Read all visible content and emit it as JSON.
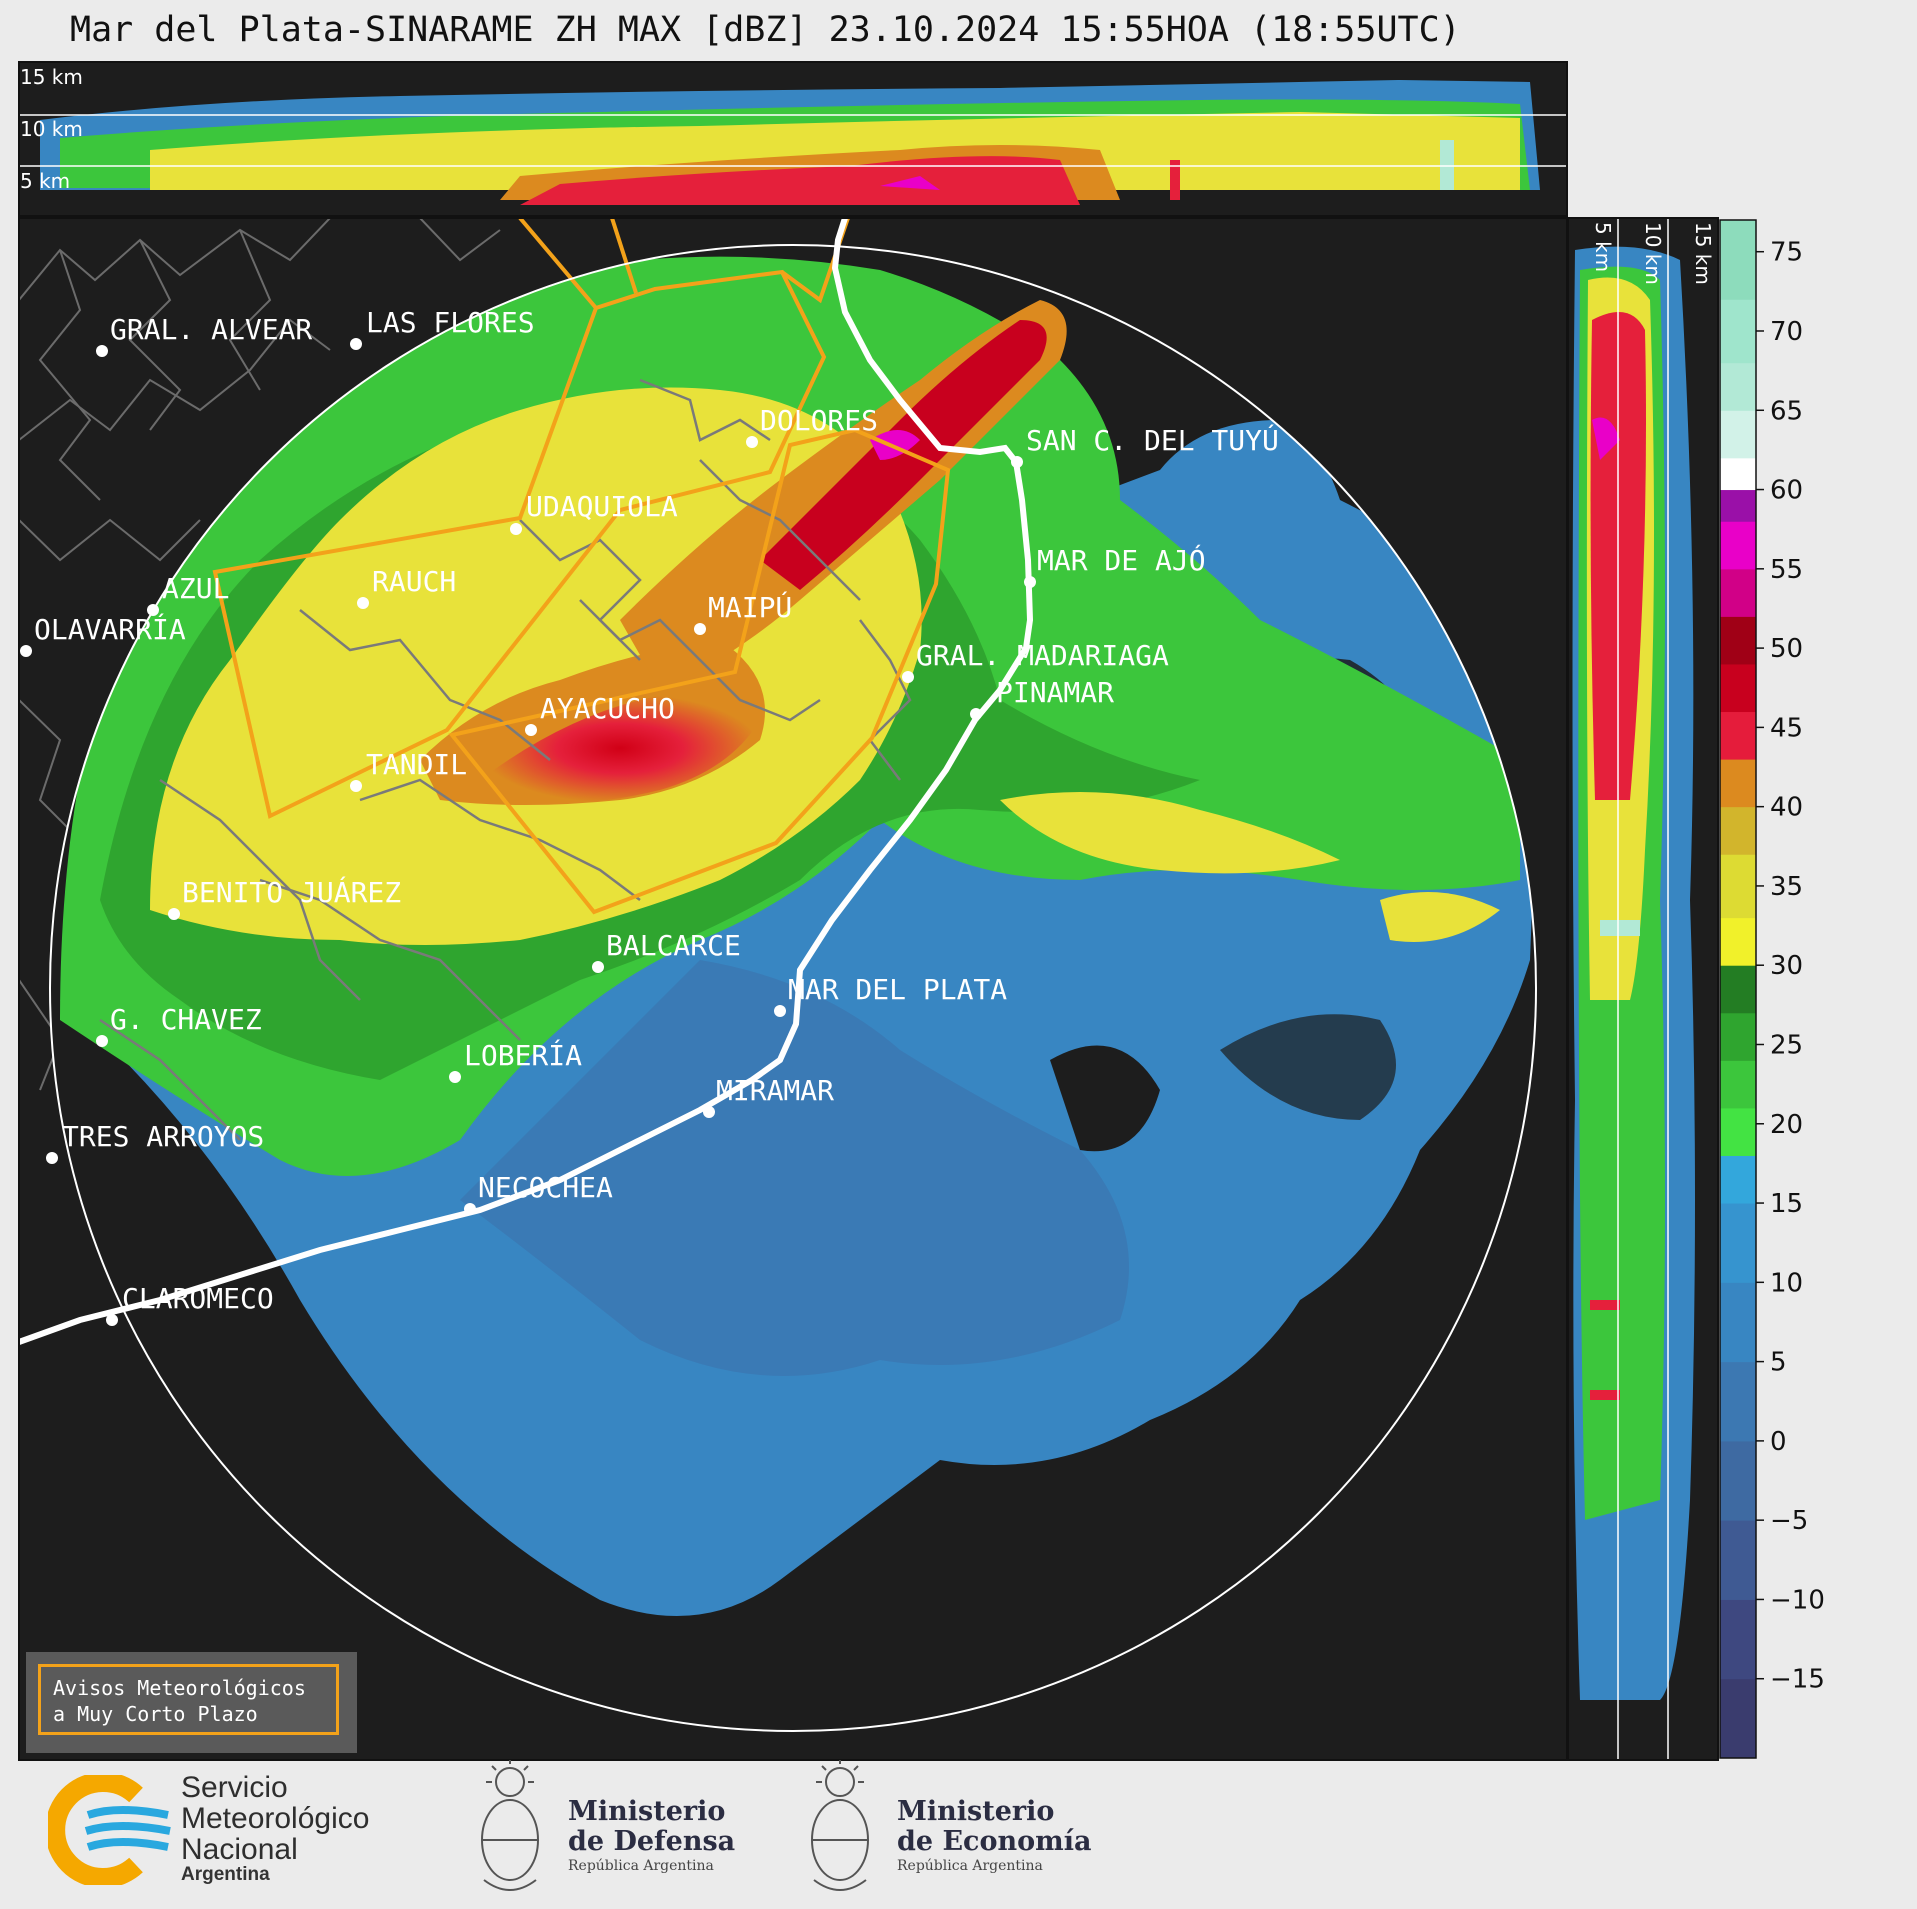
{
  "title": "Mar del Plata-SINARAME ZH MAX [dBZ] 23.10.2024 15:55HOA (18:55UTC)",
  "height_labels": {
    "top": [
      "15 km",
      "10 km",
      "5 km"
    ],
    "side": [
      "5 km",
      "10 km",
      "15 km"
    ]
  },
  "colorbar": {
    "ticks": [
      "75",
      "70",
      "65",
      "60",
      "55",
      "50",
      "45",
      "40",
      "35",
      "30",
      "25",
      "20",
      "15",
      "10",
      "5",
      "0",
      "−5",
      "−10",
      "−15"
    ],
    "tick_values": [
      75,
      70,
      65,
      60,
      55,
      50,
      45,
      40,
      35,
      30,
      25,
      20,
      15,
      10,
      5,
      0,
      -5,
      -10,
      -15
    ],
    "range": [
      -20,
      77
    ],
    "bands": [
      {
        "from": -20,
        "to": -15,
        "color": "#3a3c6e"
      },
      {
        "from": -15,
        "to": -10,
        "color": "#3e4880"
      },
      {
        "from": -10,
        "to": -5,
        "color": "#3f5a93"
      },
      {
        "from": -5,
        "to": 0,
        "color": "#3e6aa2"
      },
      {
        "from": 0,
        "to": 5,
        "color": "#3c78b2"
      },
      {
        "from": 5,
        "to": 10,
        "color": "#3886c2"
      },
      {
        "from": 10,
        "to": 15,
        "color": "#3694cf"
      },
      {
        "from": 15,
        "to": 18,
        "color": "#33a7dc"
      },
      {
        "from": 18,
        "to": 21,
        "color": "#43e343"
      },
      {
        "from": 21,
        "to": 24,
        "color": "#3cc63c"
      },
      {
        "from": 24,
        "to": 27,
        "color": "#2fa52f"
      },
      {
        "from": 27,
        "to": 30,
        "color": "#237d23"
      },
      {
        "from": 30,
        "to": 33,
        "color": "#f1f12a"
      },
      {
        "from": 33,
        "to": 37,
        "color": "#dddb33"
      },
      {
        "from": 37,
        "to": 40,
        "color": "#d2b52c"
      },
      {
        "from": 40,
        "to": 43,
        "color": "#dc8a1f"
      },
      {
        "from": 43,
        "to": 46,
        "color": "#e51c3b"
      },
      {
        "from": 46,
        "to": 49,
        "color": "#c8001e"
      },
      {
        "from": 49,
        "to": 52,
        "color": "#a00016"
      },
      {
        "from": 52,
        "to": 55,
        "color": "#d10087"
      },
      {
        "from": 55,
        "to": 58,
        "color": "#e900c8"
      },
      {
        "from": 58,
        "to": 60,
        "color": "#9a10a8"
      },
      {
        "from": 60,
        "to": 62,
        "color": "#ffffff"
      },
      {
        "from": 62,
        "to": 65,
        "color": "#d2f2e8"
      },
      {
        "from": 65,
        "to": 68,
        "color": "#b2e9d6"
      },
      {
        "from": 68,
        "to": 72,
        "color": "#9fe5cc"
      },
      {
        "from": 72,
        "to": 77,
        "color": "#8ddcbc"
      }
    ]
  },
  "cities": [
    {
      "name": "GRAL. ALVEAR"
    },
    {
      "name": "LAS FLORES"
    },
    {
      "name": "DOLORES"
    },
    {
      "name": "SAN C. DEL TUYÚ"
    },
    {
      "name": "UDAQUIOLA"
    },
    {
      "name": "RAUCH"
    },
    {
      "name": "AZUL"
    },
    {
      "name": "OLAVARRÍA"
    },
    {
      "name": "MAR DE AJÓ"
    },
    {
      "name": "MAIPÚ"
    },
    {
      "name": "GRAL. MADARIAGA"
    },
    {
      "name": "PINAMAR"
    },
    {
      "name": "AYACUCHO"
    },
    {
      "name": "TANDIL"
    },
    {
      "name": "BENITO JUÁREZ"
    },
    {
      "name": "BALCARCE"
    },
    {
      "name": "MAR DEL PLATA"
    },
    {
      "name": "G. CHAVEZ"
    },
    {
      "name": "LOBERÍA"
    },
    {
      "name": "MIRAMAR"
    },
    {
      "name": "TRES ARROYOS"
    },
    {
      "name": "NECOCHEA"
    },
    {
      "name": "CLAROMECO"
    }
  ],
  "avisos": {
    "line1": "Avisos Meteorológicos",
    "line2": "a Muy Corto Plazo"
  },
  "logos": {
    "smn": {
      "line1": "Servicio",
      "line2": "Meteorológico",
      "line3": "Nacional",
      "country": "Argentina"
    },
    "defensa": {
      "line1": "Ministerio",
      "line2": "de Defensa",
      "sub": "República Argentina"
    },
    "economia": {
      "line1": "Ministerio",
      "line2": "de Economía",
      "sub": "República Argentina"
    }
  }
}
